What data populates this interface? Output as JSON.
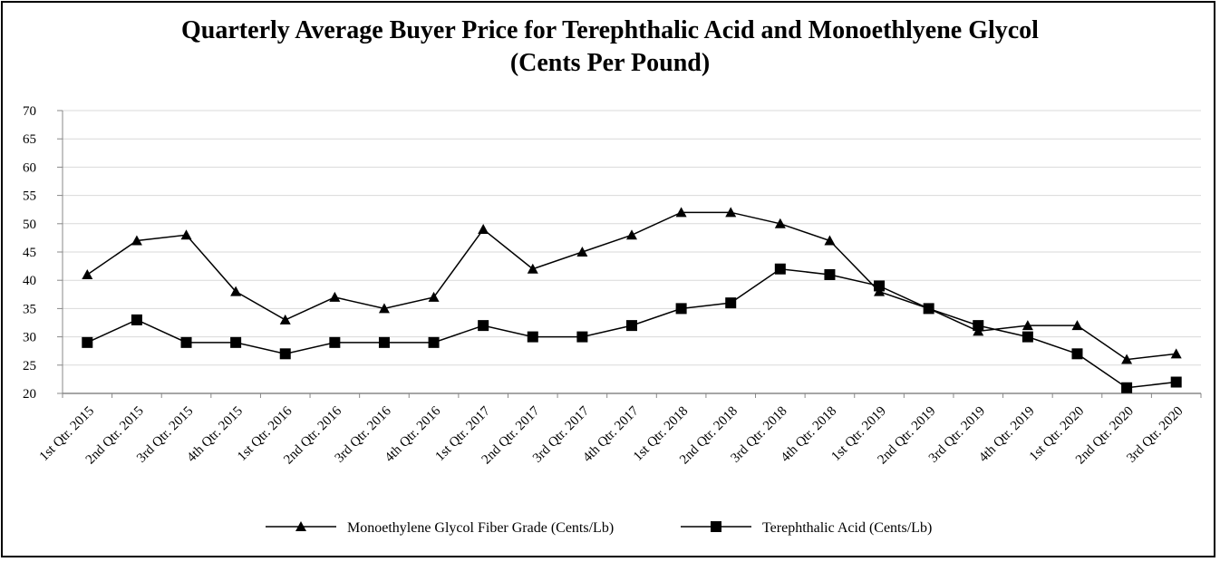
{
  "chart_data": {
    "type": "line",
    "title": "Quarterly Average Buyer Price for Terephthalic Acid and Monoethlyene Glycol",
    "subtitle": "(Cents Per Pound)",
    "xlabel": "",
    "ylabel": "",
    "ylim": [
      20,
      70
    ],
    "yticks": [
      "70",
      "65",
      "60",
      "55",
      "50",
      "45",
      "40",
      "35",
      "30",
      "25",
      "20"
    ],
    "grid": true,
    "legend_position": "bottom",
    "categories": [
      "1st Qtr. 2015",
      "2nd Qtr. 2015",
      "3rd Qtr. 2015",
      "4th Qtr. 2015",
      "1st Qtr. 2016",
      "2nd Qtr. 2016",
      "3rd Qtr. 2016",
      "4th Qtr. 2016",
      "1st Qtr. 2017",
      "2nd Qtr. 2017",
      "3rd Qtr. 2017",
      "4th Qtr. 2017",
      "1st Qtr. 2018",
      "2nd Qtr. 2018",
      "3rd Qtr. 2018",
      "4th Qtr. 2018",
      "1st Qtr. 2019",
      "2nd Qtr. 2019",
      "3rd Qtr. 2019",
      "4th Qtr. 2019",
      "1st Qtr. 2020",
      "2nd Qtr. 2020",
      "3rd Qtr. 2020"
    ],
    "series": [
      {
        "name": "Monoethylene Glycol Fiber Grade (Cents/Lb)",
        "marker": "triangle",
        "color": "#000000",
        "values": [
          41,
          47,
          48,
          38,
          33,
          37,
          35,
          37,
          49,
          42,
          45,
          48,
          52,
          52,
          50,
          47,
          38,
          35,
          31,
          32,
          32,
          26,
          27
        ]
      },
      {
        "name": "Terephthalic Acid (Cents/Lb)",
        "marker": "square",
        "color": "#000000",
        "values": [
          29,
          33,
          29,
          29,
          27,
          29,
          29,
          29,
          32,
          30,
          30,
          32,
          35,
          36,
          42,
          41,
          39,
          35,
          32,
          30,
          27,
          21,
          22
        ]
      }
    ]
  }
}
